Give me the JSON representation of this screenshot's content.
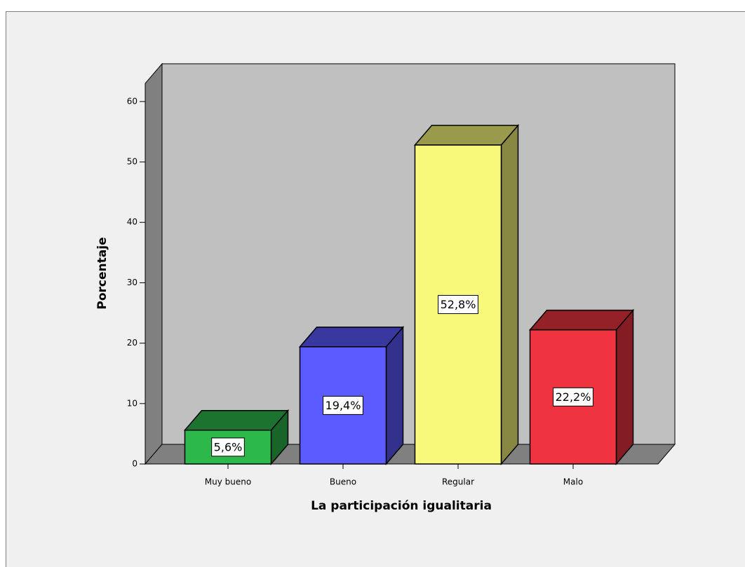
{
  "chart_data": {
    "type": "bar3d",
    "x_label": "La participación igualitaria",
    "y_label": "Porcentaje",
    "categories": [
      "Muy bueno",
      "Bueno",
      "Regular",
      "Malo"
    ],
    "values": [
      5.6,
      19.4,
      52.8,
      22.2
    ],
    "value_labels": [
      "5,6%",
      "19,4%",
      "52,8%",
      "22,2%"
    ],
    "colors": [
      "#2db84b",
      "#5b5bff",
      "#f8f87a",
      "#ef3340"
    ],
    "ylim": [
      0,
      63
    ],
    "yticks": [
      0,
      10,
      20,
      30,
      40,
      50,
      60
    ]
  }
}
